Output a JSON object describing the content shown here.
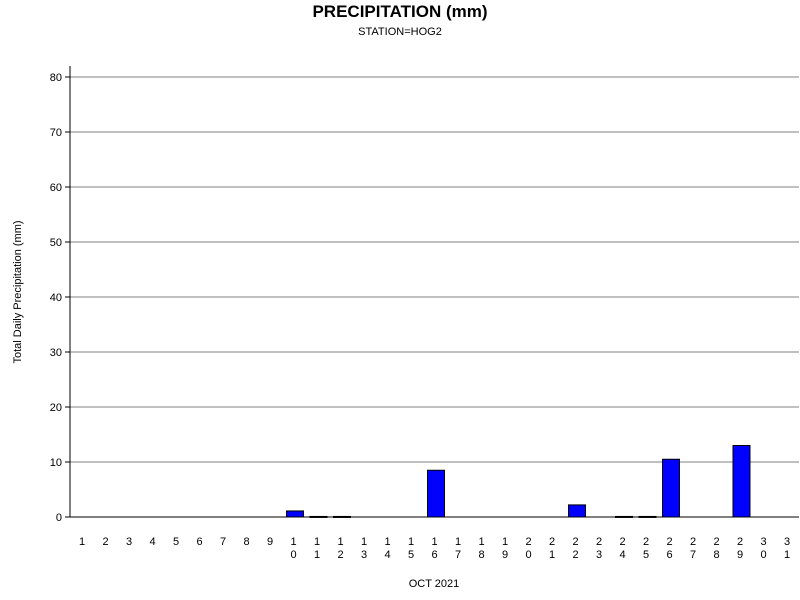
{
  "chart_data": {
    "type": "bar",
    "title": "PRECIPITATION (mm)",
    "subtitle": "STATION=HOG2",
    "xlabel": "OCT 2021",
    "ylabel": "Total Daily Precipitation (mm)",
    "ylim": [
      0,
      80
    ],
    "yticks": [
      0,
      10,
      20,
      30,
      40,
      50,
      60,
      70,
      80
    ],
    "grid": true,
    "bar_color": "#0000ff",
    "categories": [
      "1",
      "2",
      "3",
      "4",
      "5",
      "6",
      "7",
      "8",
      "9",
      "10",
      "11",
      "12",
      "13",
      "14",
      "15",
      "16",
      "17",
      "18",
      "19",
      "20",
      "21",
      "22",
      "23",
      "24",
      "25",
      "26",
      "27",
      "28",
      "29",
      "30",
      "31"
    ],
    "values": [
      0,
      0,
      0,
      0,
      0,
      0,
      0,
      0,
      0,
      1.1,
      0.1,
      0.1,
      0,
      0,
      0,
      8.5,
      0,
      0,
      0,
      0,
      0,
      2.2,
      0,
      0.1,
      0.1,
      10.5,
      0,
      0,
      13,
      0,
      0
    ]
  }
}
